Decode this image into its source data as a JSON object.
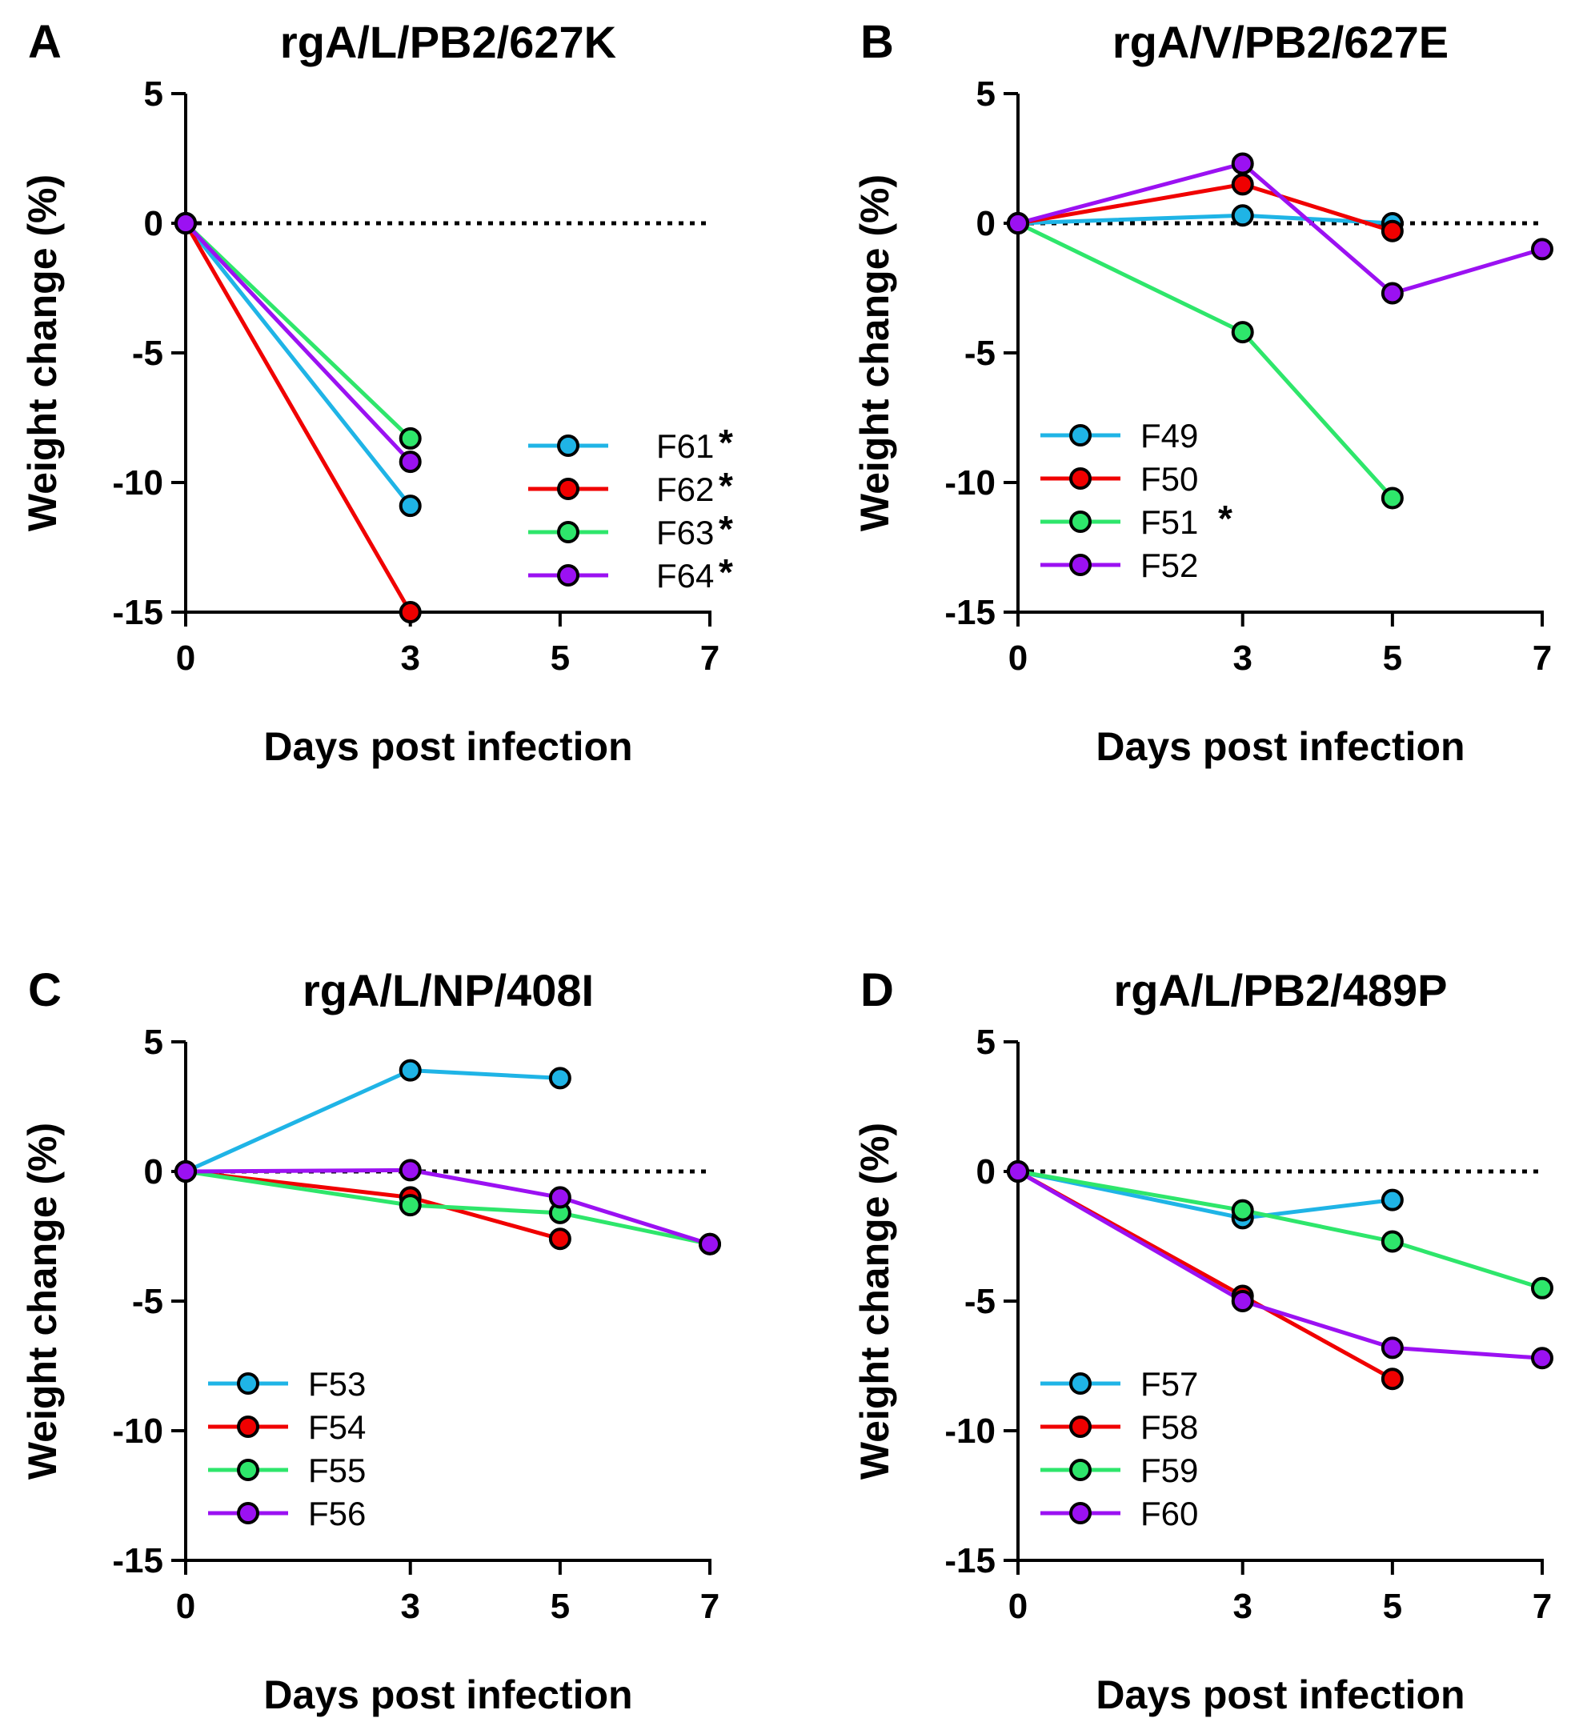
{
  "colors": {
    "F_blue": "#1FB4E6",
    "F_red": "#F00000",
    "F_green": "#2EE66B",
    "F_purple": "#9B11F2",
    "axis": "#000000"
  },
  "chart_data": [
    {
      "panel": "A",
      "type": "line",
      "title": "rgA/L/PB2/627K",
      "xlabel": "Days post infection",
      "ylabel": "Weight change (%)",
      "xticks": [
        0,
        3,
        5,
        7
      ],
      "yticks": [
        5,
        0,
        -5,
        -10,
        -15
      ],
      "xlim": [
        0,
        7
      ],
      "ylim": [
        -15,
        5
      ],
      "legend_position": "bottom-right",
      "series": [
        {
          "name": "F61",
          "star": "*",
          "color": "#1FB4E6",
          "x": [
            0,
            3
          ],
          "y": [
            0,
            -10.9
          ]
        },
        {
          "name": "F62",
          "star": "*",
          "color": "#F00000",
          "x": [
            0,
            3
          ],
          "y": [
            0,
            -15.0
          ]
        },
        {
          "name": "F63",
          "star": "*",
          "color": "#2EE66B",
          "x": [
            0,
            3
          ],
          "y": [
            0,
            -8.3
          ]
        },
        {
          "name": "F64",
          "star": "*",
          "color": "#9B11F2",
          "x": [
            0,
            3
          ],
          "y": [
            0,
            -9.2
          ]
        }
      ]
    },
    {
      "panel": "B",
      "type": "line",
      "title": "rgA/V/PB2/627E",
      "xlabel": "Days post infection",
      "ylabel": "Weight change (%)",
      "xticks": [
        0,
        3,
        5,
        7
      ],
      "yticks": [
        5,
        0,
        -5,
        -10,
        -15
      ],
      "xlim": [
        0,
        7
      ],
      "ylim": [
        -15,
        5
      ],
      "legend_position": "bottom-left",
      "series": [
        {
          "name": "F49",
          "star": "",
          "color": "#1FB4E6",
          "x": [
            0,
            3,
            5
          ],
          "y": [
            0,
            0.3,
            0.0
          ]
        },
        {
          "name": "F50",
          "star": "",
          "color": "#F00000",
          "x": [
            0,
            3,
            5
          ],
          "y": [
            0,
            1.5,
            -0.3
          ]
        },
        {
          "name": "F51",
          "star": "*",
          "color": "#2EE66B",
          "x": [
            0,
            3,
            5
          ],
          "y": [
            0,
            -4.2,
            -10.6
          ]
        },
        {
          "name": "F52",
          "star": "",
          "color": "#9B11F2",
          "x": [
            0,
            3,
            5,
            7
          ],
          "y": [
            0,
            2.3,
            -2.7,
            -1.0
          ]
        }
      ]
    },
    {
      "panel": "C",
      "type": "line",
      "title": "rgA/L/NP/408I",
      "xlabel": "Days post infection",
      "ylabel": "Weight change (%)",
      "xticks": [
        0,
        3,
        5,
        7
      ],
      "yticks": [
        5,
        0,
        -5,
        -10,
        -15
      ],
      "xlim": [
        0,
        7
      ],
      "ylim": [
        -15,
        5
      ],
      "legend_position": "bottom-left",
      "series": [
        {
          "name": "F53",
          "star": "",
          "color": "#1FB4E6",
          "x": [
            0,
            3,
            5
          ],
          "y": [
            0,
            3.9,
            3.6
          ]
        },
        {
          "name": "F54",
          "star": "",
          "color": "#F00000",
          "x": [
            0,
            3,
            5
          ],
          "y": [
            0,
            -1.0,
            -2.6
          ]
        },
        {
          "name": "F55",
          "star": "",
          "color": "#2EE66B",
          "x": [
            0,
            3,
            5,
            7
          ],
          "y": [
            0,
            -1.3,
            -1.6,
            -2.8
          ]
        },
        {
          "name": "F56",
          "star": "",
          "color": "#9B11F2",
          "x": [
            0,
            3,
            5,
            7
          ],
          "y": [
            0,
            0.05,
            -1.0,
            -2.8
          ]
        }
      ]
    },
    {
      "panel": "D",
      "type": "line",
      "title": "rgA/L/PB2/489P",
      "xlabel": "Days post infection",
      "ylabel": "Weight change (%)",
      "xticks": [
        0,
        3,
        5,
        7
      ],
      "yticks": [
        5,
        0,
        -5,
        -10,
        -15
      ],
      "xlim": [
        0,
        7
      ],
      "ylim": [
        -15,
        5
      ],
      "legend_position": "bottom-left",
      "series": [
        {
          "name": "F57",
          "star": "",
          "color": "#1FB4E6",
          "x": [
            0,
            3,
            5
          ],
          "y": [
            0,
            -1.8,
            -1.1
          ]
        },
        {
          "name": "F58",
          "star": "",
          "color": "#F00000",
          "x": [
            0,
            3,
            5
          ],
          "y": [
            0,
            -4.8,
            -8.0
          ]
        },
        {
          "name": "F59",
          "star": "",
          "color": "#2EE66B",
          "x": [
            0,
            3,
            5,
            7
          ],
          "y": [
            0,
            -1.5,
            -2.7,
            -4.5
          ]
        },
        {
          "name": "F60",
          "star": "",
          "color": "#9B11F2",
          "x": [
            0,
            3,
            5,
            7
          ],
          "y": [
            0,
            -5.0,
            -6.8,
            -7.2
          ]
        }
      ]
    }
  ]
}
